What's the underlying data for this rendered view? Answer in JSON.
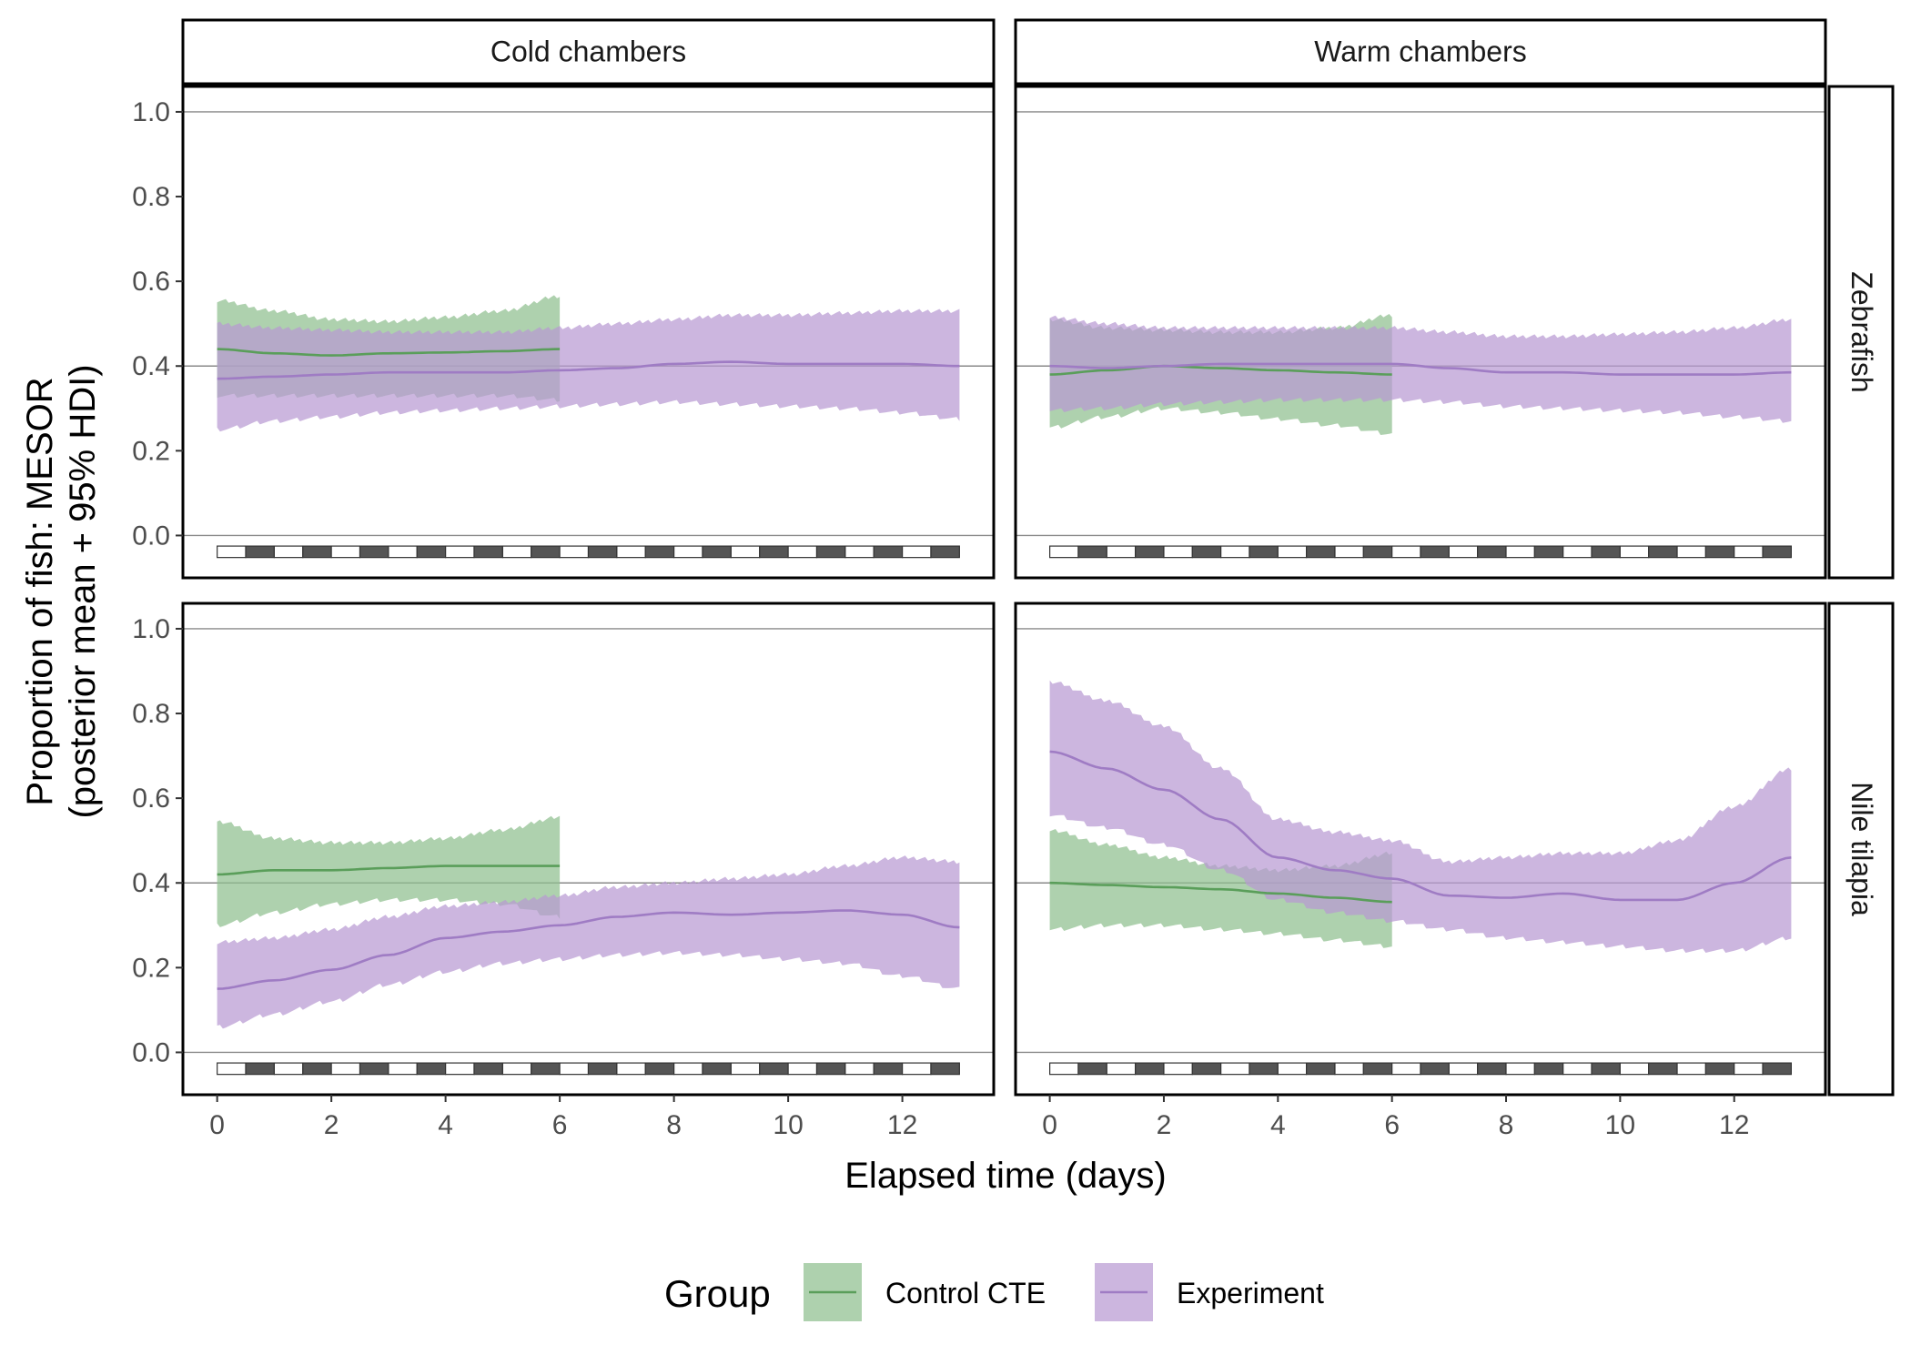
{
  "chart_data": {
    "type": "line",
    "facet_columns": [
      "Cold chambers",
      "Warm chambers"
    ],
    "facet_rows": [
      "Zebrafish",
      "Nile tilapia"
    ],
    "xlabel": "Elapsed time (days)",
    "ylabel_line1": "Proportion of fish: MESOR",
    "ylabel_line2": "(posterior mean + 95% HDI)",
    "xlim": [
      -0.6,
      13.6
    ],
    "ylim": [
      -0.1,
      1.06
    ],
    "x_ticks": [
      0,
      2,
      4,
      6,
      8,
      10,
      12
    ],
    "y_ticks": [
      0.0,
      0.2,
      0.4,
      0.6,
      0.8,
      1.0
    ],
    "y_tick_labels": [
      "0.0",
      "0.2",
      "0.4",
      "0.6",
      "0.8",
      "1.0"
    ],
    "reference_lines": [
      0.0,
      0.4,
      1.0
    ],
    "light_dark_bar": {
      "start": 0,
      "end": 13,
      "period_days": 1,
      "colors": {
        "light": "#ffffff",
        "dark": "#555555"
      }
    },
    "legend": {
      "title": "Group",
      "position": "bottom"
    },
    "series_styles": [
      {
        "name": "Control CTE",
        "line_color": "#5a9e5a",
        "ribbon_color": "#8fbf8f"
      },
      {
        "name": "Experiment",
        "line_color": "#9f7cc4",
        "ribbon_color": "#b99ad2"
      }
    ],
    "panels": [
      {
        "row": "Zebrafish",
        "column": "Cold chambers",
        "series": [
          {
            "name": "Control CTE",
            "x": [
              0,
              1,
              2,
              3,
              4,
              5,
              6
            ],
            "mean": [
              0.44,
              0.43,
              0.425,
              0.43,
              0.432,
              0.435,
              0.44
            ],
            "lower": [
              0.33,
              0.33,
              0.33,
              0.33,
              0.33,
              0.33,
              0.32
            ],
            "upper": [
              0.555,
              0.53,
              0.51,
              0.505,
              0.515,
              0.53,
              0.565
            ]
          },
          {
            "name": "Experiment",
            "x": [
              0,
              1,
              2,
              3,
              4,
              5,
              6,
              7,
              8,
              9,
              10,
              11,
              12,
              13
            ],
            "mean": [
              0.37,
              0.375,
              0.38,
              0.385,
              0.385,
              0.385,
              0.39,
              0.395,
              0.405,
              0.41,
              0.405,
              0.405,
              0.405,
              0.4
            ],
            "lower": [
              0.25,
              0.27,
              0.28,
              0.29,
              0.295,
              0.3,
              0.305,
              0.31,
              0.315,
              0.31,
              0.305,
              0.3,
              0.29,
              0.275
            ],
            "upper": [
              0.5,
              0.49,
              0.485,
              0.48,
              0.48,
              0.48,
              0.49,
              0.5,
              0.51,
              0.52,
              0.52,
              0.525,
              0.53,
              0.53
            ]
          }
        ]
      },
      {
        "row": "Zebrafish",
        "column": "Warm chambers",
        "series": [
          {
            "name": "Control CTE",
            "x": [
              0,
              1,
              2,
              3,
              4,
              5,
              6
            ],
            "mean": [
              0.38,
              0.39,
              0.4,
              0.395,
              0.39,
              0.385,
              0.38
            ],
            "lower": [
              0.255,
              0.28,
              0.3,
              0.29,
              0.275,
              0.26,
              0.24
            ],
            "upper": [
              0.51,
              0.49,
              0.485,
              0.48,
              0.48,
              0.49,
              0.52
            ]
          },
          {
            "name": "Experiment",
            "x": [
              0,
              1,
              2,
              3,
              4,
              5,
              6,
              7,
              8,
              9,
              10,
              11,
              12,
              13
            ],
            "mean": [
              0.4,
              0.395,
              0.4,
              0.405,
              0.405,
              0.405,
              0.405,
              0.395,
              0.385,
              0.385,
              0.38,
              0.38,
              0.38,
              0.385
            ],
            "lower": [
              0.295,
              0.3,
              0.31,
              0.315,
              0.32,
              0.32,
              0.32,
              0.315,
              0.305,
              0.3,
              0.295,
              0.29,
              0.28,
              0.27
            ],
            "upper": [
              0.515,
              0.5,
              0.49,
              0.49,
              0.49,
              0.49,
              0.49,
              0.48,
              0.47,
              0.47,
              0.475,
              0.48,
              0.49,
              0.51
            ]
          }
        ]
      },
      {
        "row": "Nile tilapia",
        "column": "Cold chambers",
        "series": [
          {
            "name": "Control CTE",
            "x": [
              0,
              1,
              2,
              3,
              4,
              5,
              6
            ],
            "mean": [
              0.42,
              0.43,
              0.43,
              0.435,
              0.44,
              0.44,
              0.44
            ],
            "lower": [
              0.3,
              0.33,
              0.35,
              0.36,
              0.36,
              0.35,
              0.32
            ],
            "upper": [
              0.545,
              0.505,
              0.495,
              0.495,
              0.505,
              0.525,
              0.555
            ]
          },
          {
            "name": "Experiment",
            "x": [
              0,
              1,
              2,
              3,
              4,
              5,
              6,
              7,
              8,
              9,
              10,
              11,
              12,
              13
            ],
            "mean": [
              0.15,
              0.17,
              0.195,
              0.23,
              0.27,
              0.285,
              0.3,
              0.32,
              0.33,
              0.325,
              0.33,
              0.335,
              0.325,
              0.295
            ],
            "lower": [
              0.06,
              0.09,
              0.12,
              0.16,
              0.19,
              0.21,
              0.22,
              0.23,
              0.235,
              0.23,
              0.22,
              0.21,
              0.18,
              0.15
            ],
            "upper": [
              0.26,
              0.27,
              0.29,
              0.32,
              0.345,
              0.355,
              0.37,
              0.39,
              0.4,
              0.41,
              0.42,
              0.44,
              0.46,
              0.45
            ]
          }
        ]
      },
      {
        "row": "Nile tilapia",
        "column": "Warm chambers",
        "series": [
          {
            "name": "Control CTE",
            "x": [
              0,
              1,
              2,
              3,
              4,
              5,
              6
            ],
            "mean": [
              0.4,
              0.395,
              0.39,
              0.385,
              0.375,
              0.365,
              0.355
            ],
            "lower": [
              0.29,
              0.3,
              0.3,
              0.29,
              0.28,
              0.265,
              0.25
            ],
            "upper": [
              0.525,
              0.49,
              0.46,
              0.44,
              0.43,
              0.44,
              0.47
            ]
          },
          {
            "name": "Experiment",
            "x": [
              0,
              1,
              2,
              3,
              4,
              5,
              6,
              7,
              8,
              9,
              10,
              11,
              12,
              13
            ],
            "mean": [
              0.71,
              0.67,
              0.62,
              0.55,
              0.46,
              0.43,
              0.41,
              0.37,
              0.365,
              0.375,
              0.36,
              0.36,
              0.4,
              0.46
            ],
            "lower": [
              0.56,
              0.53,
              0.49,
              0.43,
              0.36,
              0.33,
              0.31,
              0.29,
              0.27,
              0.26,
              0.25,
              0.24,
              0.24,
              0.27
            ],
            "upper": [
              0.875,
              0.83,
              0.77,
              0.67,
              0.55,
              0.52,
              0.5,
              0.45,
              0.46,
              0.47,
              0.47,
              0.5,
              0.58,
              0.67
            ]
          }
        ]
      }
    ]
  }
}
